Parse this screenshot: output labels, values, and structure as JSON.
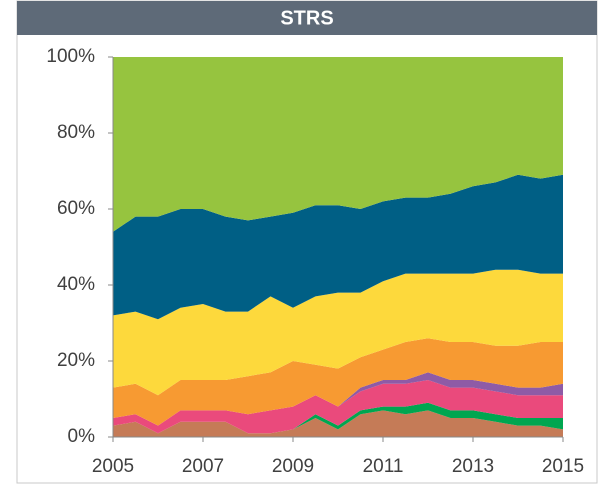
{
  "chart_data": {
    "type": "stacked_area",
    "title": "STRS",
    "x": [
      2005,
      2005.5,
      2006,
      2006.5,
      2007,
      2007.5,
      2008,
      2008.5,
      2009,
      2009.5,
      2010,
      2010.5,
      2011,
      2011.5,
      2012,
      2012.5,
      2013,
      2013.5,
      2014,
      2014.5,
      2015
    ],
    "xlim": [
      2005,
      2015
    ],
    "xticks": [
      2005,
      2007,
      2009,
      2011,
      2013,
      2015
    ],
    "ylim": [
      0,
      100
    ],
    "yticks": [
      {
        "value": 0,
        "label": "0%"
      },
      {
        "value": 20,
        "label": "20%"
      },
      {
        "value": 40,
        "label": "40%"
      },
      {
        "value": 60,
        "label": "60%"
      },
      {
        "value": 80,
        "label": "80%"
      },
      {
        "value": 100,
        "label": "100%"
      }
    ],
    "series": [
      {
        "color": "#c57b57",
        "values": [
          3,
          4,
          1,
          4,
          4,
          4,
          1,
          1,
          2,
          5,
          2,
          6,
          7,
          6,
          7,
          5,
          5,
          4,
          3,
          3,
          2
        ]
      },
      {
        "color": "#00a650",
        "values": [
          0,
          0,
          0,
          0,
          0,
          0,
          0,
          0,
          0,
          1,
          1,
          1,
          1,
          2,
          2,
          2,
          2,
          2,
          2,
          2,
          3
        ]
      },
      {
        "color": "#ea4a7c",
        "values": [
          2,
          2,
          2,
          3,
          3,
          3,
          5,
          6,
          6,
          5,
          5,
          5,
          6,
          6,
          6,
          6,
          6,
          6,
          6,
          6,
          6
        ]
      },
      {
        "color": "#8e5ba6",
        "values": [
          0,
          0,
          0,
          0,
          0,
          0,
          0,
          0,
          0,
          0,
          0,
          1,
          1,
          1,
          2,
          2,
          2,
          2,
          2,
          2,
          3
        ]
      },
      {
        "color": "#f79a32",
        "values": [
          8,
          8,
          8,
          8,
          8,
          8,
          10,
          10,
          12,
          8,
          10,
          8,
          8,
          10,
          9,
          10,
          10,
          10,
          11,
          12,
          11
        ]
      },
      {
        "color": "#fdd93c",
        "values": [
          19,
          19,
          20,
          19,
          20,
          18,
          17,
          20,
          14,
          18,
          20,
          17,
          18,
          18,
          17,
          18,
          18,
          20,
          20,
          18,
          18
        ]
      },
      {
        "color": "#005f85",
        "values": [
          22,
          25,
          27,
          26,
          25,
          25,
          24,
          21,
          25,
          24,
          23,
          22,
          21,
          20,
          20,
          21,
          23,
          23,
          25,
          25,
          26
        ]
      },
      {
        "color": "#96c43f",
        "values": [
          46,
          42,
          42,
          40,
          40,
          42,
          43,
          42,
          41,
          39,
          39,
          40,
          38,
          37,
          37,
          36,
          34,
          33,
          31,
          32,
          31
        ]
      }
    ]
  }
}
